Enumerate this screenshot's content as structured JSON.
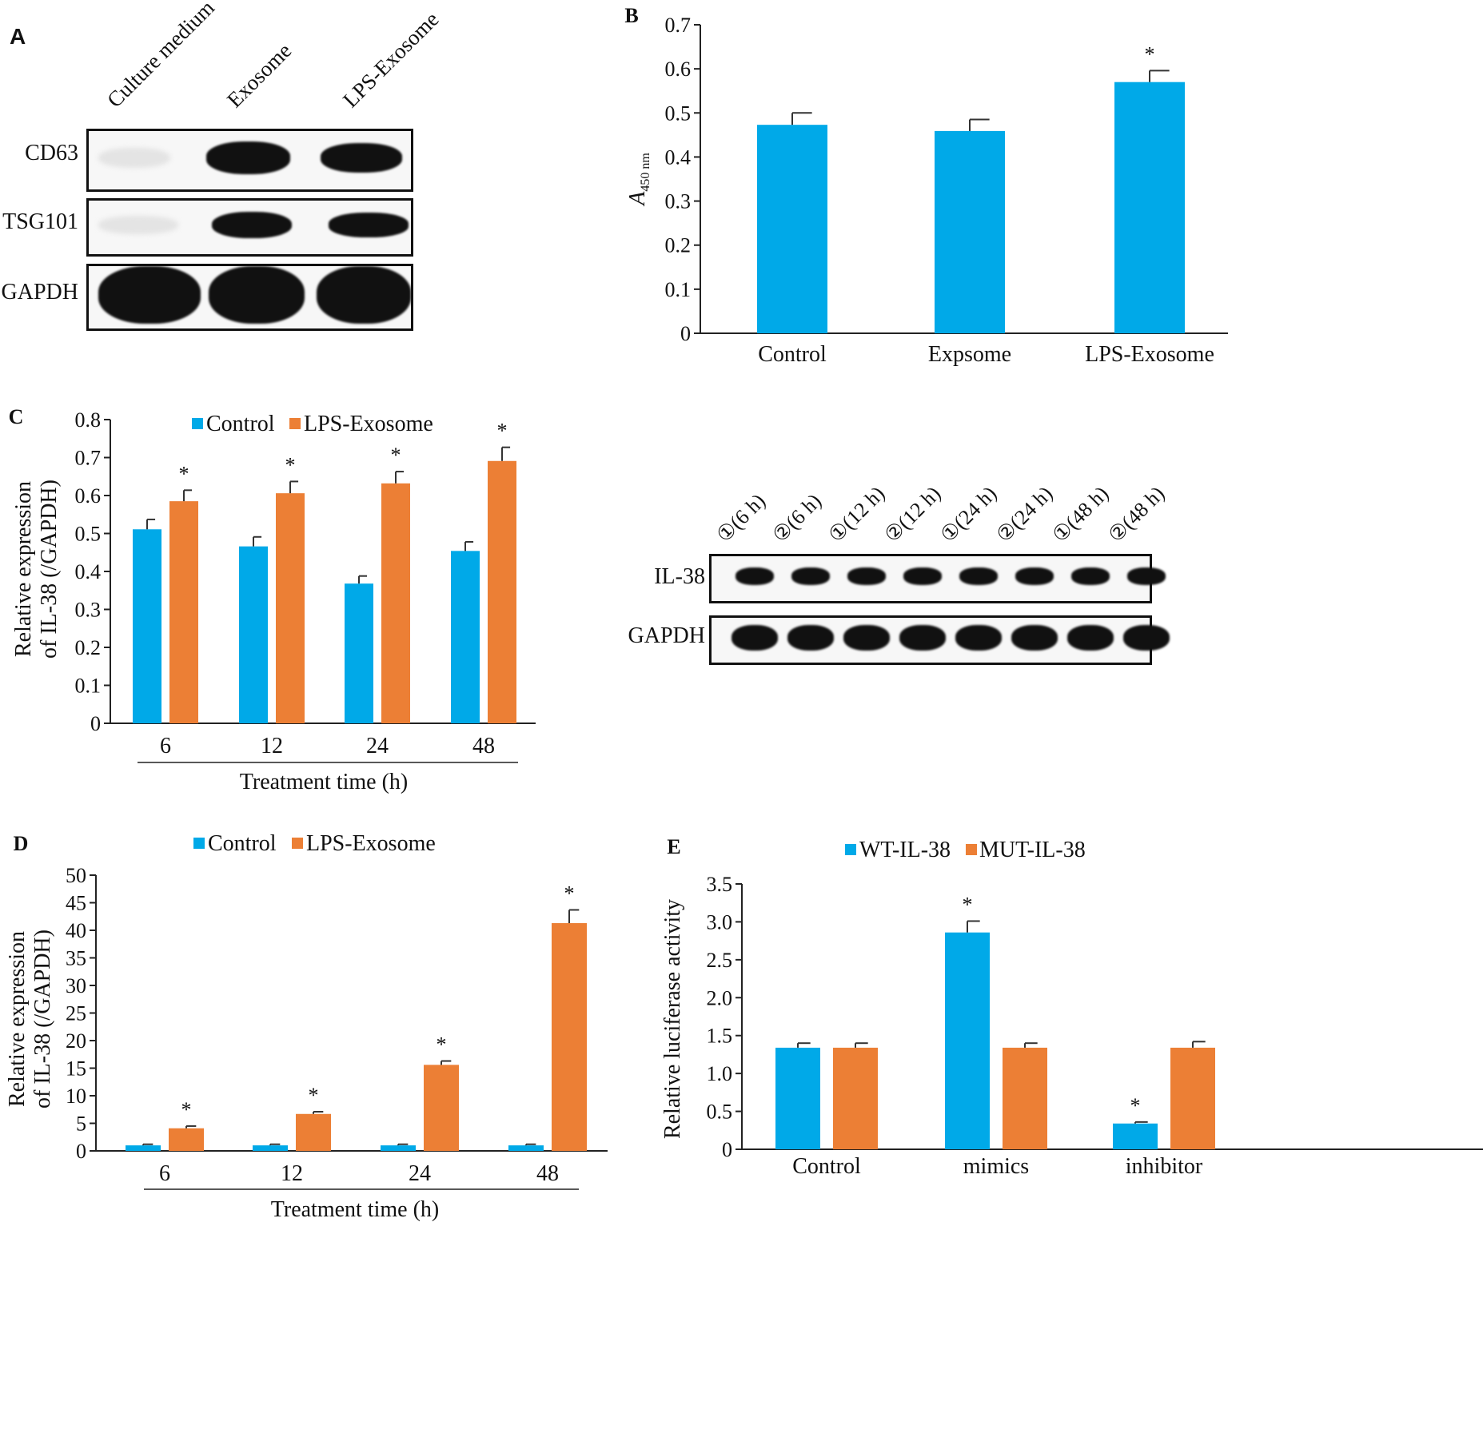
{
  "panels": {
    "A": {
      "letter": "A",
      "lanes": [
        "Culture medium",
        "Exosome",
        "LPS-Exosome"
      ],
      "rows": [
        "CD63",
        "TSG101",
        "GAPDH"
      ]
    },
    "C_blot": {
      "lanes": [
        "①(6 h)",
        "②(6 h)",
        "①(12 h)",
        "②(12 h)",
        "①(24 h)",
        "②(24 h)",
        "①(48 h)",
        "②(48 h)"
      ],
      "rows": [
        "IL-38",
        "GAPDH"
      ]
    }
  },
  "colors": {
    "blue": "#00a9e8",
    "orange": "#ec7f35"
  },
  "chart_data": [
    {
      "id": "B",
      "letter": "B",
      "type": "bar",
      "ylabel_main": "A",
      "ylabel_sub": "450 nm",
      "xlabel": "",
      "ylim": [
        0,
        0.7
      ],
      "yticks": [
        "0",
        "0.1",
        "0.2",
        "0.3",
        "0.4",
        "0.5",
        "0.6",
        "0.7"
      ],
      "categories": [
        "Control",
        "Expsome",
        "LPS-Exosome"
      ],
      "series": [
        {
          "values": [
            0.473,
            0.459,
            0.57
          ],
          "errors": [
            0.027,
            0.026,
            0.026
          ],
          "color": "#00a9e8"
        }
      ],
      "significance": [
        [
          "",
          "",
          "*"
        ]
      ]
    },
    {
      "id": "C",
      "letter": "C",
      "type": "bar",
      "ylabel": [
        "Relative expression",
        "of IL-38 (/GAPDH)"
      ],
      "xlabel": "Treatment time (h)",
      "ylim": [
        0,
        0.8
      ],
      "yticks": [
        "0",
        "0.1",
        "0.2",
        "0.3",
        "0.4",
        "0.5",
        "0.6",
        "0.7",
        "0.8"
      ],
      "categories": [
        "6",
        "12",
        "24",
        "48"
      ],
      "legend": [
        "Control",
        "LPS-Exosome"
      ],
      "series": [
        {
          "name": "Control",
          "values": [
            0.511,
            0.466,
            0.368,
            0.454
          ],
          "errors": [
            0.026,
            0.025,
            0.02,
            0.024
          ],
          "color": "#00a9e8"
        },
        {
          "name": "LPS-Exosome",
          "values": [
            0.585,
            0.606,
            0.632,
            0.691
          ],
          "errors": [
            0.029,
            0.031,
            0.031,
            0.036
          ],
          "color": "#ec7f35"
        }
      ],
      "significance": [
        [
          "",
          "",
          "",
          ""
        ],
        [
          "*",
          "*",
          "*",
          "*"
        ]
      ]
    },
    {
      "id": "D",
      "letter": "D",
      "type": "bar",
      "ylabel": [
        "Relative expression",
        "of IL-38 (/GAPDH)"
      ],
      "xlabel": "Treatment time (h)",
      "ylim": [
        0,
        50
      ],
      "yticks": [
        "0",
        "5",
        "10",
        "15",
        "20",
        "25",
        "30",
        "35",
        "40",
        "45",
        "50"
      ],
      "categories": [
        "6",
        "12",
        "24",
        "48"
      ],
      "legend": [
        "Control",
        "LPS-Exosome"
      ],
      "series": [
        {
          "name": "Control",
          "values": [
            1.0,
            1.0,
            1.0,
            1.0
          ],
          "errors": [
            0.2,
            0.2,
            0.2,
            0.2
          ],
          "color": "#00a9e8"
        },
        {
          "name": "LPS-Exosome",
          "values": [
            4.1,
            6.7,
            15.6,
            41.3
          ],
          "errors": [
            0.4,
            0.4,
            0.7,
            2.4
          ],
          "color": "#ec7f35"
        }
      ],
      "significance": [
        [
          "",
          "",
          "",
          ""
        ],
        [
          "*",
          "*",
          "*",
          "*"
        ]
      ]
    },
    {
      "id": "E",
      "letter": "E",
      "type": "bar",
      "ylabel": [
        "Relative luciferase activity"
      ],
      "xlabel": "",
      "ylim": [
        0,
        3.5
      ],
      "yticks": [
        "0",
        "0.5",
        "1.0",
        "1.5",
        "2.0",
        "2.5",
        "3.0",
        "3.5"
      ],
      "categories": [
        "Control",
        "mimics",
        "inhibitor"
      ],
      "legend": [
        "WT-IL-38",
        "MUT-IL-38"
      ],
      "series": [
        {
          "name": "WT-IL-38",
          "values": [
            1.34,
            2.86,
            0.34
          ],
          "errors": [
            0.06,
            0.15,
            0.02
          ],
          "color": "#00a9e8"
        },
        {
          "name": "MUT-IL-38",
          "values": [
            1.34,
            1.34,
            1.34
          ],
          "errors": [
            0.06,
            0.06,
            0.08
          ],
          "color": "#ec7f35"
        }
      ],
      "significance": [
        [
          "",
          "*",
          "*"
        ],
        [
          "",
          "",
          ""
        ]
      ]
    }
  ]
}
